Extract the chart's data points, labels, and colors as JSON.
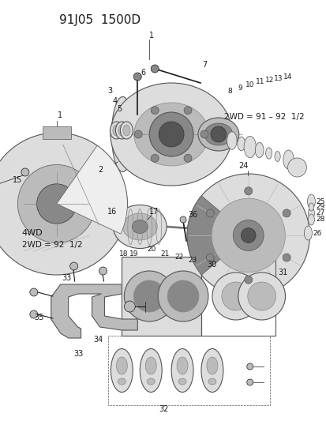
{
  "title": "91J05  1500D",
  "bg_color": "#ffffff",
  "fg_color": "#1a1a1a",
  "text_2wd_label": "2WD = 91 – 92 1/2",
  "text_4wd_label": "4WD",
  "text_2wd2_label": "2WD = 92 1/2",
  "fig_w": 4.14,
  "fig_h": 5.33,
  "dpi": 100
}
